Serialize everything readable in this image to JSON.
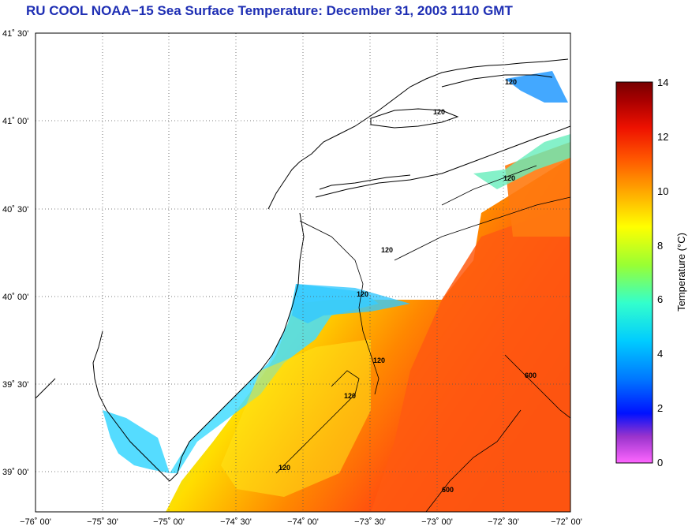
{
  "title": "RU COOL  NOAA−15  Sea Surface Temperature:  December 31, 2003 1110 GMT",
  "map": {
    "lat_labels": [
      "41˚ 30'",
      "41˚ 00'",
      "40˚ 30'",
      "40˚ 00'",
      "39˚ 30'",
      "39˚ 00'"
    ],
    "lon_labels": [
      "−76˚ 00'",
      "−75˚ 30'",
      "−75˚ 00'",
      "−74˚ 30'",
      "−74˚ 00'",
      "−73˚ 30'",
      "−73˚ 00'",
      "−72˚ 30'",
      "−72˚ 00'"
    ],
    "contour_labels": [
      "120",
      "120",
      "120",
      "120",
      "120",
      "120",
      "120",
      "120",
      "600",
      "600"
    ],
    "grid": "dotted"
  },
  "colorbar": {
    "title": "Temperature (°C)",
    "ticks": [
      "0",
      "2",
      "4",
      "6",
      "8",
      "10",
      "12",
      "14"
    ],
    "min": 0,
    "max": 14,
    "colors": [
      "#ff66ff",
      "#6633cc",
      "#0022ff",
      "#00bbff",
      "#33ffcc",
      "#99ff33",
      "#ffee00",
      "#ffaa00",
      "#ff5500",
      "#dd1100",
      "#990000",
      "#660000"
    ]
  }
}
